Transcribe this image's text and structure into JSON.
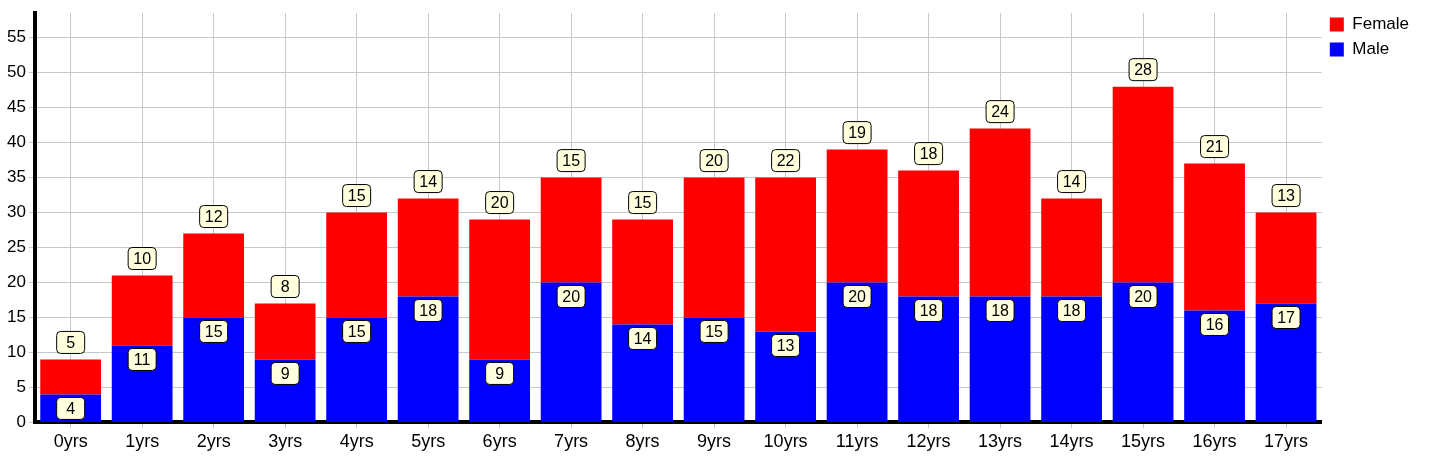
{
  "chart_data": {
    "type": "bar",
    "stacked": true,
    "categories": [
      "0yrs",
      "1yrs",
      "2yrs",
      "3yrs",
      "4yrs",
      "5yrs",
      "6yrs",
      "7yrs",
      "8yrs",
      "9yrs",
      "10yrs",
      "11yrs",
      "12yrs",
      "13yrs",
      "14yrs",
      "15yrs",
      "16yrs",
      "17yrs"
    ],
    "series": [
      {
        "name": "Male",
        "color": "#0000ff",
        "values": [
          4,
          11,
          15,
          9,
          15,
          18,
          9,
          20,
          14,
          15,
          13,
          20,
          18,
          18,
          18,
          20,
          16,
          17
        ]
      },
      {
        "name": "Female",
        "color": "#ff0000",
        "values": [
          5,
          10,
          12,
          8,
          15,
          14,
          20,
          15,
          15,
          20,
          22,
          19,
          18,
          24,
          14,
          28,
          21,
          13
        ]
      }
    ],
    "ylim": [
      0,
      58.5
    ],
    "yticks": [
      0,
      5,
      10,
      15,
      20,
      25,
      30,
      35,
      40,
      45,
      50,
      55
    ],
    "grid": true,
    "legend": "top right",
    "data_labels": true
  }
}
